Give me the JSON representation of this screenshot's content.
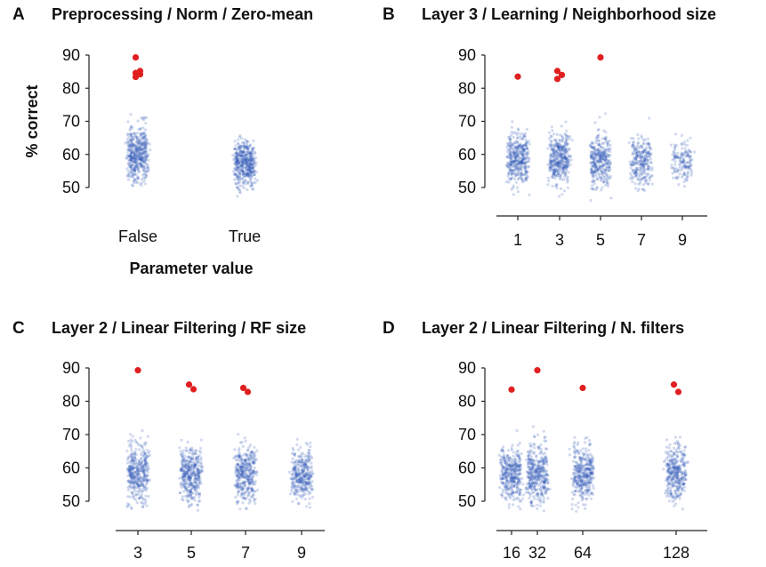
{
  "colors": {
    "background": "#ffffff",
    "scatter": "#2e56b8",
    "highlight": "#e02020",
    "axis": "#222222"
  },
  "chart_data": [
    {
      "letter": "A",
      "type": "scatter",
      "title": "Preprocessing / Norm / Zero-mean",
      "ylabel": "% correct",
      "xlabel": "Parameter value",
      "ylim": [
        45,
        90
      ],
      "yticks": [
        50,
        60,
        70,
        80,
        90
      ],
      "categories": [
        "False",
        "True"
      ],
      "distributions": [
        {
          "center": 60,
          "spread": 4.2,
          "min": 50,
          "max": 73,
          "count": 450
        },
        {
          "center": 57,
          "spread": 3.4,
          "min": 45,
          "max": 72,
          "count": 450
        }
      ],
      "highlights": [
        {
          "category": "False",
          "values": [
            89.3,
            85.2,
            84.6,
            84.2,
            83.4
          ]
        }
      ]
    },
    {
      "letter": "B",
      "type": "scatter",
      "title": "Layer 3 / Learning / Neighborhood size",
      "ylabel": "",
      "xlabel": "",
      "ylim": [
        45,
        90
      ],
      "yticks": [
        50,
        60,
        70,
        80,
        90
      ],
      "categories": [
        "1",
        "3",
        "5",
        "7",
        "9"
      ],
      "distributions": [
        {
          "center": 58.5,
          "spread": 4.0,
          "min": 46,
          "max": 75,
          "count": 380
        },
        {
          "center": 58.5,
          "spread": 4.0,
          "min": 47,
          "max": 76,
          "count": 380
        },
        {
          "center": 58.0,
          "spread": 4.0,
          "min": 46,
          "max": 75,
          "count": 330
        },
        {
          "center": 58.0,
          "spread": 3.8,
          "min": 48,
          "max": 75,
          "count": 260
        },
        {
          "center": 58.0,
          "spread": 3.6,
          "min": 50,
          "max": 74,
          "count": 150
        }
      ],
      "highlights": [
        {
          "category": "1",
          "values": [
            83.5
          ]
        },
        {
          "category": "3",
          "values": [
            85.2,
            84.0,
            82.8
          ]
        },
        {
          "category": "5",
          "values": [
            89.3
          ]
        }
      ]
    },
    {
      "letter": "C",
      "type": "scatter",
      "title": "Layer 2 / Linear Filtering / RF size",
      "ylabel": "",
      "xlabel": "",
      "ylim": [
        45,
        90
      ],
      "yticks": [
        50,
        60,
        70,
        80,
        90
      ],
      "categories": [
        "3",
        "5",
        "7",
        "9"
      ],
      "distributions": [
        {
          "center": 58.5,
          "spread": 4.2,
          "min": 44,
          "max": 76,
          "count": 380
        },
        {
          "center": 58.0,
          "spread": 4.2,
          "min": 46,
          "max": 76,
          "count": 380
        },
        {
          "center": 58.0,
          "spread": 4.0,
          "min": 46,
          "max": 75,
          "count": 360
        },
        {
          "center": 57.5,
          "spread": 3.8,
          "min": 48,
          "max": 76,
          "count": 330
        }
      ],
      "highlights": [
        {
          "category": "3",
          "values": [
            89.3
          ]
        },
        {
          "category": "5",
          "values": [
            85.0,
            83.6
          ]
        },
        {
          "category": "7",
          "values": [
            84.0,
            82.8
          ]
        }
      ]
    },
    {
      "letter": "D",
      "type": "scatter",
      "title": "Layer 2 / Linear Filtering / N. filters",
      "ylabel": "",
      "xlabel": "",
      "ylim": [
        45,
        90
      ],
      "yticks": [
        50,
        60,
        70,
        80,
        90
      ],
      "categories": [
        "16",
        "32",
        "64",
        "128"
      ],
      "x_positions": [
        16,
        32,
        64,
        128
      ],
      "x_scale": "log",
      "distributions": [
        {
          "center": 58.0,
          "spread": 4.0,
          "min": 47,
          "max": 75,
          "count": 360
        },
        {
          "center": 58.5,
          "spread": 4.2,
          "min": 46,
          "max": 77,
          "count": 380
        },
        {
          "center": 58.0,
          "spread": 4.0,
          "min": 46,
          "max": 76,
          "count": 360
        },
        {
          "center": 58.5,
          "spread": 4.0,
          "min": 47,
          "max": 75,
          "count": 340
        }
      ],
      "highlights": [
        {
          "category": "16",
          "values": [
            83.5
          ]
        },
        {
          "category": "32",
          "values": [
            89.3
          ]
        },
        {
          "category": "64",
          "values": [
            84.0
          ]
        },
        {
          "category": "128",
          "values": [
            85.0,
            82.8
          ]
        }
      ]
    }
  ]
}
